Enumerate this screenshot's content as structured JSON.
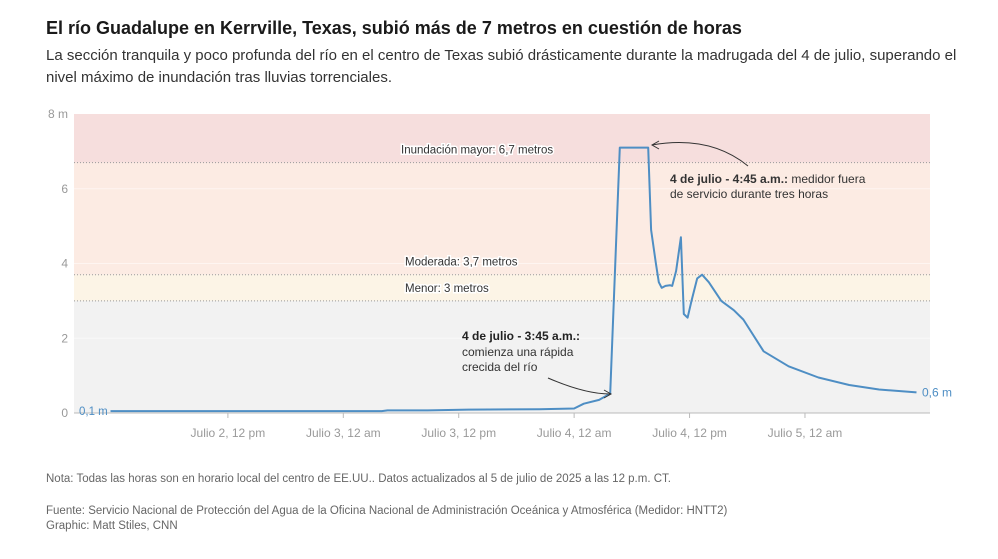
{
  "title": "El río Guadalupe en Kerrville, Texas, subió más de 7 metros en cuestión de horas",
  "subtitle": "La sección tranquila y poco profunda del río en el centro de Texas subió drásticamente durante la madrugada del 4 de julio, superando el nivel máximo de inundación tras lluvias torrenciales.",
  "chart_data": {
    "type": "line",
    "x_unit": "hours relative to Julio 4, 12 am",
    "xlim": [
      -52,
      37
    ],
    "ylim": [
      0,
      8
    ],
    "yticks": [
      {
        "v": 0,
        "label": "0"
      },
      {
        "v": 2,
        "label": "2"
      },
      {
        "v": 4,
        "label": "4"
      },
      {
        "v": 6,
        "label": "6"
      },
      {
        "v": 8,
        "label": "8 m"
      }
    ],
    "xticks": [
      {
        "v": -36,
        "label": "Julio 2, 12 pm"
      },
      {
        "v": -24,
        "label": "Julio 3, 12 am"
      },
      {
        "v": -12,
        "label": "Julio 3, 12 pm"
      },
      {
        "v": 0,
        "label": "Julio 4, 12 am"
      },
      {
        "v": 12,
        "label": "Julio 4, 12 pm"
      },
      {
        "v": 24,
        "label": "Julio 5, 12 am"
      }
    ],
    "thresholds": [
      {
        "v": 6.7,
        "label": "Inundación mayor: 6,7 metros",
        "color": "#f6dedd"
      },
      {
        "v": 3.7,
        "label": "Moderada: 3,7 metros",
        "color": "#fcebe3"
      },
      {
        "v": 3,
        "label": "Menor: 3 metros",
        "color": "#fcf4e6"
      }
    ],
    "base_color": "#f2f2f2",
    "line_color": "#4e8ec4",
    "series": [
      {
        "name": "Nivel del río (m)",
        "points": [
          [
            -48.2,
            0.05
          ],
          [
            -20,
            0.05
          ],
          [
            -19.4,
            0.07
          ],
          [
            -15.2,
            0.07
          ],
          [
            -11,
            0.09
          ],
          [
            -3.6,
            0.1
          ],
          [
            0,
            0.12
          ],
          [
            1,
            0.25
          ],
          [
            2.6,
            0.35
          ],
          [
            3.75,
            0.52
          ],
          [
            4.75,
            7.1
          ],
          [
            7.7,
            7.1
          ],
          [
            8,
            4.9
          ],
          [
            8.5,
            4.0
          ],
          [
            8.8,
            3.5
          ],
          [
            9.1,
            3.35
          ],
          [
            9.5,
            3.4
          ],
          [
            9.97,
            3.42
          ],
          [
            10.2,
            3.4
          ],
          [
            10.6,
            3.8
          ],
          [
            11.1,
            4.7
          ],
          [
            11.4,
            2.65
          ],
          [
            11.8,
            2.55
          ],
          [
            12.2,
            3.0
          ],
          [
            12.8,
            3.6
          ],
          [
            13.3,
            3.7
          ],
          [
            14,
            3.5
          ],
          [
            15.3,
            3.0
          ],
          [
            16.6,
            2.75
          ],
          [
            17.6,
            2.5
          ],
          [
            19.7,
            1.65
          ],
          [
            22.3,
            1.25
          ],
          [
            25.4,
            0.95
          ],
          [
            28.6,
            0.75
          ],
          [
            31.7,
            0.63
          ],
          [
            35.6,
            0.55
          ]
        ]
      }
    ],
    "start_label": "0,1 m",
    "end_label": "0,6 m",
    "annotations": [
      {
        "bold": "4 de julio - 3:45 a.m.:",
        "lines": [
          "comienza una rápida",
          "crecida del río"
        ]
      },
      {
        "bold": "4 de julio - 4:45 a.m.:",
        "rest": " medidor fuera",
        "lines": [
          "de servicio durante tres horas"
        ]
      }
    ]
  },
  "notes": {
    "nota": "Nota: Todas las horas son en horario local del centro de EE.UU.. Datos actualizados al 5 de julio de 2025 a las 12 p.m. CT.",
    "fuente": "Fuente: Servicio Nacional de Protección del Agua de la Oficina Nacional de Administración Oceánica y Atmosférica (Medidor: HNTT2)",
    "graphic": "Graphic: Matt Stiles, CNN"
  }
}
